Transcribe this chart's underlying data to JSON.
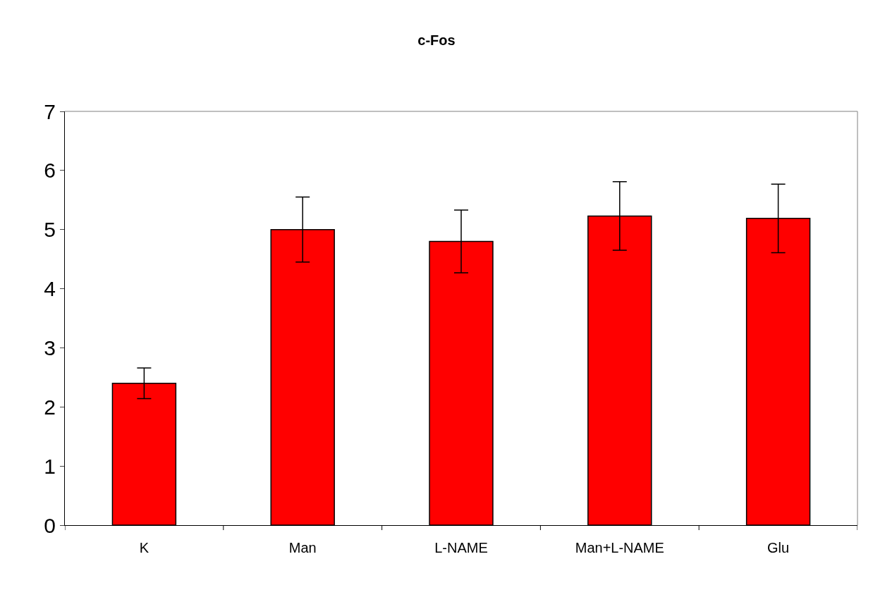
{
  "chart_data": {
    "type": "bar",
    "title": "c-Fos",
    "categories": [
      "K",
      "Man",
      "L-NAME",
      "Man+L-NAME",
      "Glu"
    ],
    "values": [
      2.4,
      5.0,
      4.8,
      5.23,
      5.19
    ],
    "errors": [
      0.26,
      0.55,
      0.53,
      0.58,
      0.58
    ],
    "color": "#ff0000",
    "ylim": [
      0,
      7
    ],
    "yticks": [
      0,
      1,
      2,
      3,
      4,
      5,
      6,
      7
    ]
  }
}
